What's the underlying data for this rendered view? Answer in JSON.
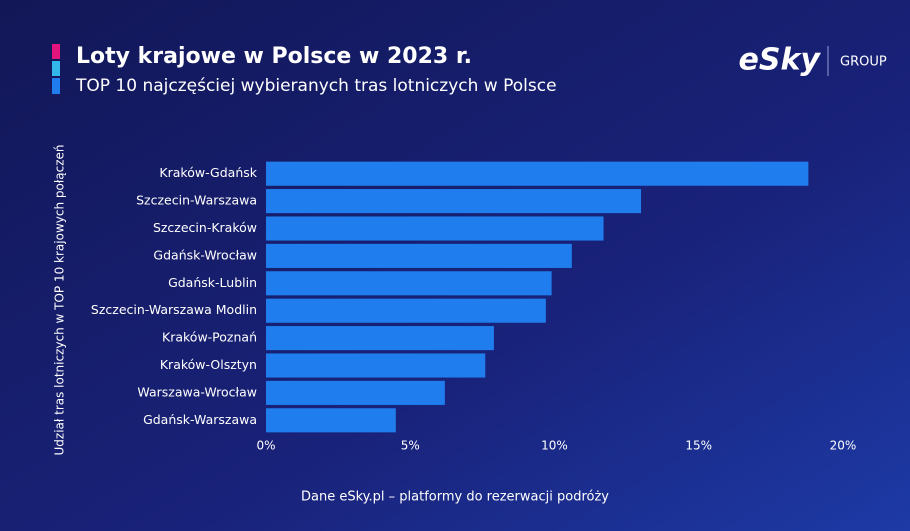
{
  "chart_data": {
    "type": "bar",
    "orientation": "horizontal",
    "title": "Loty krajowe w Polsce w 2023 r.",
    "subtitle": "TOP 10 najczęściej wybieranych tras lotniczych w Polsce",
    "y_label": "Udział tras lotniczych w TOP 10 krajowych połączeń",
    "source": "Dane eSky.pl – platformy do rezerwacji podróży",
    "brand": "eSky",
    "brand_group": "GROUP",
    "categories": [
      "Kraków-Gdańsk",
      "Szczecin-Warszawa",
      "Szczecin-Kraków",
      "Gdańsk-Wrocław",
      "Gdańsk-Lublin",
      "Szczecin-Warszawa Modlin",
      "Kraków-Poznań",
      "Kraków-Olsztyn",
      "Warszawa-Wrocław",
      "Gdańsk-Warszawa"
    ],
    "values": [
      18.8,
      13.0,
      11.7,
      10.6,
      9.9,
      9.7,
      7.9,
      7.6,
      6.2,
      4.5
    ],
    "color": "#1f7ded",
    "xlim": [
      0,
      20
    ],
    "xticks": [
      {
        "value": 0,
        "label": "0%"
      },
      {
        "value": 5,
        "label": "5%"
      },
      {
        "value": 10,
        "label": "10%"
      },
      {
        "value": 15,
        "label": "15%"
      },
      {
        "value": 20,
        "label": "20%"
      }
    ],
    "grid": false
  }
}
